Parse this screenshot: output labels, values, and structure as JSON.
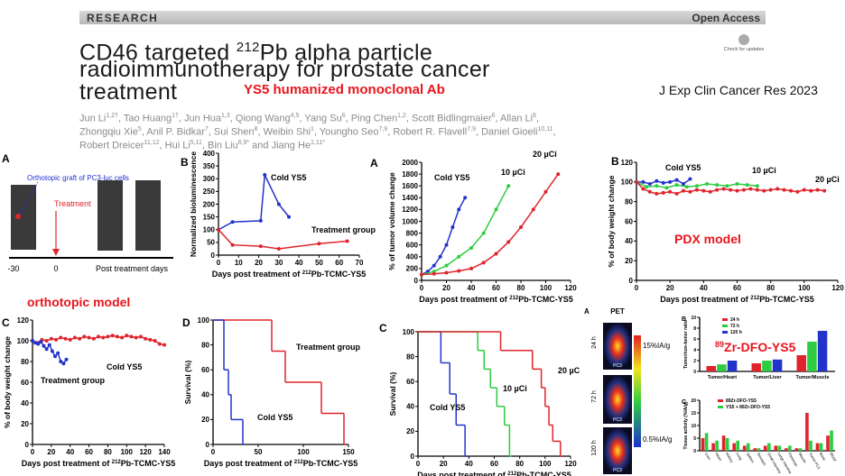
{
  "header": {
    "section": "RESEARCH",
    "access": "Open Access",
    "badge": "Check for updates"
  },
  "title": {
    "line1_pre": "CD46 targeted ",
    "line1_sup": "212",
    "line1_post": "Pb alpha particle",
    "line2": "radioimmunotherapy for prostate cancer",
    "line3": "treatment"
  },
  "subtitle": "YS5 humanized monoclonal Ab",
  "journal": "J Exp Clin Cancer Res 2023",
  "authors": [
    [
      {
        "name": "Jun Li",
        "aff": "1,2†",
        "sep": ", "
      },
      {
        "name": "Tao Huang",
        "aff": "1†",
        "sep": ", "
      },
      {
        "name": "Jun Hua",
        "aff": "1,3",
        "sep": ", "
      },
      {
        "name": "Qiong Wang",
        "aff": "4,5",
        "sep": ", "
      },
      {
        "name": "Yang Su",
        "aff": "6",
        "sep": ", "
      },
      {
        "name": "Ping Chen",
        "aff": "1,2",
        "sep": ", "
      },
      {
        "name": "Scott Bidlingmaier",
        "aff": "6",
        "sep": ", "
      },
      {
        "name": "Allan Li",
        "aff": "6",
        "sep": ","
      }
    ],
    [
      {
        "name": "Zhongqiu Xie",
        "aff": "5",
        "sep": ", "
      },
      {
        "name": "Anil P. Bidkar",
        "aff": "7",
        "sep": ", "
      },
      {
        "name": "Sui Shen",
        "aff": "8",
        "sep": ", "
      },
      {
        "name": "Weibin Shi",
        "aff": "1",
        "sep": ", "
      },
      {
        "name": "Youngho Seo",
        "aff": "7,9",
        "sep": ", "
      },
      {
        "name": "Robert R. Flavell",
        "aff": "7,9",
        "sep": ", "
      },
      {
        "name": "Daniel Gioeli",
        "aff": "10,11",
        "sep": ","
      }
    ],
    [
      {
        "name": "Robert Dreicer",
        "aff": "11,12",
        "sep": ", "
      },
      {
        "name": "Hui Li",
        "aff": "5,11",
        "sep": ", "
      },
      {
        "name": "Bin Liu",
        "aff": "6,9*",
        "sep": " and "
      },
      {
        "name": "Jiang He",
        "aff": "1,11*",
        "sep": ""
      }
    ]
  ],
  "labels": {
    "orthotopic": "orthotopic model",
    "pdx": "PDX model",
    "probe_sup": "89",
    "probe": "Zr-DFO-YS5"
  },
  "diagram": {
    "panel": "A",
    "graft": "Orthotopic graft of PC3-luc cells",
    "treatment": "Treatment",
    "timeline": [
      "-30",
      "0",
      "Post treatment days"
    ]
  },
  "pet": {
    "panel": "A",
    "title": "PET",
    "timepoints": [
      "24 h",
      "72 h",
      "120 h"
    ],
    "scale_max": "15%IA/g",
    "scale_min": "0.5%IA/g",
    "tumor_label": "PC3"
  },
  "chart_data": [
    {
      "type": "line",
      "panel": "B",
      "y_label": "Normalized bioluminescence",
      "x_label": {
        "pre": "Days post treatment of ",
        "sup": "212",
        "post": "Pb-TCMC-YS5"
      },
      "xlim": [
        0,
        70
      ],
      "xticks": [
        0,
        10,
        20,
        30,
        40,
        50,
        60,
        70
      ],
      "ylim": [
        0,
        400
      ],
      "yticks": [
        0,
        50,
        100,
        150,
        200,
        250,
        300,
        350,
        400
      ],
      "series": [
        {
          "name": "Cold YS5",
          "color": "#2233cc",
          "x": [
            0,
            7,
            21,
            23,
            30,
            35
          ],
          "values": [
            100,
            130,
            135,
            315,
            200,
            150
          ]
        },
        {
          "name": "Treatment group",
          "color": "#e0242b",
          "x": [
            0,
            7,
            21,
            30,
            50,
            64
          ],
          "values": [
            100,
            40,
            35,
            25,
            45,
            55
          ]
        }
      ]
    },
    {
      "type": "line",
      "panel": "C",
      "y_label": "% of body weight change",
      "x_label": {
        "pre": "Days post treatment of ",
        "sup": "212",
        "post": "Pb-TCMC-YS5"
      },
      "xlim": [
        0,
        140
      ],
      "xticks": [
        0,
        20,
        40,
        60,
        80,
        100,
        120,
        140
      ],
      "ylim": [
        0,
        120
      ],
      "yticks": [
        0,
        20,
        40,
        60,
        80,
        100,
        120
      ],
      "series": [
        {
          "name": "Treatment group",
          "color": "#e0242b",
          "x": [
            0,
            5,
            10,
            15,
            20,
            25,
            30,
            35,
            40,
            45,
            50,
            55,
            60,
            65,
            70,
            75,
            80,
            85,
            90,
            95,
            100,
            105,
            110,
            115,
            120,
            125,
            130,
            135,
            140
          ],
          "values": [
            100,
            98,
            101,
            100,
            102,
            101,
            103,
            102,
            101,
            103,
            102,
            104,
            103,
            102,
            104,
            103,
            104,
            105,
            104,
            103,
            105,
            104,
            103,
            104,
            102,
            101,
            100,
            97,
            96
          ]
        },
        {
          "name": "Cold YS5",
          "color": "#2233cc",
          "x": [
            0,
            3,
            6,
            9,
            12,
            15,
            18,
            21,
            24,
            27,
            30,
            33,
            36
          ],
          "values": [
            100,
            98,
            97,
            99,
            95,
            92,
            96,
            90,
            85,
            88,
            80,
            78,
            82
          ]
        }
      ]
    },
    {
      "type": "step",
      "panel": "D",
      "y_label": "Survival (%)",
      "x_label": {
        "pre": "Days post treatment of ",
        "sup": "212",
        "post": "Pb-TCMC-YS5"
      },
      "xlim": [
        0,
        150
      ],
      "xticks": [
        0,
        50,
        100,
        150
      ],
      "ylim": [
        0,
        100
      ],
      "yticks": [
        0,
        20,
        40,
        60,
        80,
        100
      ],
      "series": [
        {
          "name": "Treatment group",
          "color": "#e0242b",
          "x": [
            0,
            65,
            80,
            120,
            145
          ],
          "values": [
            100,
            75,
            50,
            25,
            0
          ]
        },
        {
          "name": "Cold YS5",
          "color": "#2233cc",
          "x": [
            0,
            12,
            17,
            20,
            33
          ],
          "values": [
            100,
            60,
            40,
            20,
            0
          ]
        }
      ]
    },
    {
      "type": "line",
      "panel": "A",
      "y_label": "% of tumor volume change",
      "x_label": {
        "pre": "Days post treatment of ",
        "sup": "212",
        "post": "Pb-TCMC-YS5"
      },
      "xlim": [
        0,
        120
      ],
      "xticks": [
        0,
        20,
        40,
        60,
        80,
        100,
        120
      ],
      "ylim": [
        0,
        2000
      ],
      "yticks": [
        0,
        200,
        400,
        600,
        800,
        1000,
        1200,
        1400,
        1600,
        1800,
        2000
      ],
      "series": [
        {
          "name": "Cold YS5",
          "color": "#2233cc",
          "x": [
            0,
            5,
            10,
            15,
            20,
            25,
            30,
            35
          ],
          "values": [
            100,
            150,
            250,
            400,
            600,
            900,
            1200,
            1400
          ]
        },
        {
          "name": "10 µCi",
          "color": "#2ecc40",
          "x": [
            0,
            10,
            20,
            30,
            40,
            50,
            60,
            70
          ],
          "values": [
            100,
            150,
            250,
            400,
            550,
            800,
            1200,
            1600
          ]
        },
        {
          "name": "20 µCi",
          "color": "#e0242b",
          "x": [
            0,
            10,
            20,
            30,
            40,
            50,
            60,
            70,
            80,
            90,
            100,
            110
          ],
          "values": [
            100,
            110,
            130,
            160,
            200,
            300,
            450,
            650,
            900,
            1200,
            1500,
            1800
          ]
        }
      ]
    },
    {
      "type": "line",
      "panel": "B",
      "y_label": "% of body weight change",
      "x_label": {
        "pre": "Days post treatment of ",
        "sup": "212",
        "post": "Pb-TCMC-YS5"
      },
      "xlim": [
        0,
        120
      ],
      "xticks": [
        0,
        20,
        40,
        60,
        80,
        100,
        120
      ],
      "ylim": [
        0,
        120
      ],
      "yticks": [
        0,
        20,
        40,
        60,
        80,
        100,
        120
      ],
      "series": [
        {
          "name": "Cold YS5",
          "color": "#2233cc",
          "x": [
            0,
            4,
            8,
            12,
            16,
            20,
            24,
            28,
            32
          ],
          "values": [
            100,
            100,
            98,
            101,
            99,
            100,
            102,
            98,
            103
          ]
        },
        {
          "name": "10 µCi",
          "color": "#2ecc40",
          "x": [
            0,
            6,
            12,
            18,
            24,
            30,
            36,
            42,
            48,
            54,
            60,
            66,
            72
          ],
          "values": [
            100,
            95,
            96,
            94,
            97,
            95,
            96,
            98,
            97,
            96,
            98,
            97,
            96
          ]
        },
        {
          "name": "20 µCi",
          "color": "#e0242b",
          "x": [
            0,
            4,
            8,
            12,
            16,
            20,
            24,
            28,
            32,
            36,
            40,
            44,
            48,
            52,
            56,
            60,
            64,
            68,
            72,
            76,
            80,
            84,
            88,
            92,
            96,
            100,
            104,
            108,
            112
          ],
          "values": [
            100,
            93,
            90,
            88,
            89,
            90,
            88,
            91,
            90,
            92,
            91,
            90,
            92,
            93,
            92,
            91,
            92,
            93,
            92,
            91,
            92,
            93,
            92,
            91,
            90,
            92,
            91,
            92,
            91
          ]
        }
      ]
    },
    {
      "type": "step",
      "panel": "C",
      "y_label": "Survival (%)",
      "x_label": {
        "pre": "Days post treatment of ",
        "sup": "212",
        "post": "Pb-TCMC-YS5"
      },
      "xlim": [
        0,
        120
      ],
      "xticks": [
        0,
        20,
        40,
        60,
        80,
        100,
        120
      ],
      "ylim": [
        0,
        100
      ],
      "yticks": [
        0,
        20,
        40,
        60,
        80,
        100
      ],
      "series": [
        {
          "name": "Cold YS5",
          "color": "#2233cc",
          "x": [
            0,
            18,
            25,
            30,
            37
          ],
          "values": [
            100,
            75,
            50,
            25,
            0
          ]
        },
        {
          "name": "10 µCi",
          "color": "#2ecc40",
          "x": [
            0,
            47,
            52,
            57,
            62,
            68,
            72
          ],
          "values": [
            100,
            85,
            70,
            55,
            40,
            25,
            0
          ]
        },
        {
          "name": "20 µC",
          "color": "#e0242b",
          "x": [
            0,
            65,
            90,
            97,
            100,
            103,
            106,
            112
          ],
          "values": [
            100,
            85,
            70,
            55,
            40,
            25,
            12,
            0
          ]
        }
      ]
    },
    {
      "type": "bar",
      "panel": "B",
      "y_label": "Tumor/non-tumor ratio",
      "categories": [
        "Tumor/Heart",
        "Tumor/Liver",
        "Tumor/Muscle"
      ],
      "ylim": [
        0,
        10
      ],
      "yticks": [
        0,
        2,
        4,
        6,
        8,
        10
      ],
      "series": [
        {
          "name": "24 h",
          "color": "#e0242b",
          "values": [
            1,
            1.5,
            3
          ]
        },
        {
          "name": "72 h",
          "color": "#2ecc40",
          "values": [
            1.3,
            2,
            5.5
          ]
        },
        {
          "name": "120 h",
          "color": "#2233cc",
          "values": [
            2,
            2.2,
            7.5
          ]
        }
      ]
    },
    {
      "type": "bar",
      "panel": "C",
      "y_label": "Tissue activity (%IA/g)",
      "categories": [
        "Liver",
        "Heart",
        "Kidney",
        "Lung",
        "Spleen",
        "Stomach",
        "Small Intestine",
        "Large Intestine",
        "Pancreas",
        "Muscle",
        "Tumor PC3",
        "Bone",
        "Blood"
      ],
      "ylim": [
        0,
        20
      ],
      "yticks": [
        0,
        5,
        10,
        15,
        20
      ],
      "series": [
        {
          "name": "89Zr-DFO-YS5",
          "color": "#e0242b",
          "values": [
            5,
            3,
            6,
            3,
            2,
            1,
            2,
            2,
            1,
            1,
            15,
            3,
            6
          ]
        },
        {
          "name": "YS5 + 89Zr-DFO-YS5",
          "color": "#2ecc40",
          "values": [
            7,
            4,
            5,
            4,
            3,
            1,
            3,
            2,
            2,
            1,
            4,
            3,
            8
          ]
        }
      ]
    }
  ]
}
